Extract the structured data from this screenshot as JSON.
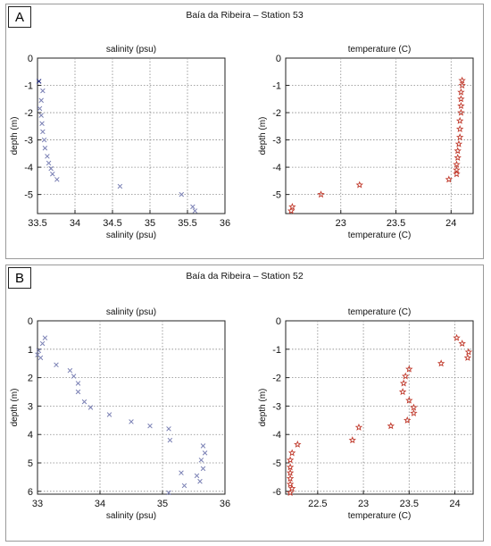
{
  "panels": [
    {
      "label": "A",
      "title": "Baía da Ribeira – Station 53",
      "charts": [
        {
          "type": "scatter",
          "title": "salinity (psu)",
          "xlabel": "salinity (psu)",
          "ylabel": "depth (m)",
          "xlim": [
            33.5,
            36
          ],
          "ylim": [
            -5.7,
            0
          ],
          "xticks": [
            33.5,
            34,
            34.5,
            35,
            35.5,
            36
          ],
          "yticks": [
            0,
            -1,
            -2,
            -3,
            -4,
            -5
          ],
          "grid": true,
          "marker": "x",
          "color": "#7a80b4",
          "first_point_color": "#1a237e",
          "points": [
            [
              33.52,
              -0.85
            ],
            [
              33.57,
              -1.2
            ],
            [
              33.55,
              -1.55
            ],
            [
              33.53,
              -1.85
            ],
            [
              33.55,
              -2.1
            ],
            [
              33.56,
              -2.4
            ],
            [
              33.57,
              -2.7
            ],
            [
              33.59,
              -3.0
            ],
            [
              33.6,
              -3.3
            ],
            [
              33.63,
              -3.6
            ],
            [
              33.65,
              -3.85
            ],
            [
              33.68,
              -4.05
            ],
            [
              33.7,
              -4.25
            ],
            [
              33.76,
              -4.45
            ],
            [
              34.6,
              -4.7
            ],
            [
              35.42,
              -5.0
            ],
            [
              35.57,
              -5.45
            ],
            [
              35.6,
              -5.6
            ]
          ]
        },
        {
          "type": "scatter",
          "title": "temperature (C)",
          "xlabel": "temperature (C)",
          "ylabel": "depth (m)",
          "xlim": [
            22.5,
            24.2
          ],
          "ylim": [
            -5.7,
            0
          ],
          "xticks": [
            23,
            23.5,
            24
          ],
          "yticks": [
            0,
            -1,
            -2,
            -3,
            -4,
            -5
          ],
          "grid": true,
          "marker": "star",
          "color": "#c0392b",
          "points": [
            [
              24.1,
              -0.82
            ],
            [
              24.1,
              -1.0
            ],
            [
              24.09,
              -1.25
            ],
            [
              24.09,
              -1.5
            ],
            [
              24.09,
              -1.75
            ],
            [
              24.09,
              -2.0
            ],
            [
              24.08,
              -2.3
            ],
            [
              24.08,
              -2.6
            ],
            [
              24.08,
              -2.9
            ],
            [
              24.07,
              -3.15
            ],
            [
              24.06,
              -3.4
            ],
            [
              24.06,
              -3.65
            ],
            [
              24.05,
              -3.9
            ],
            [
              24.05,
              -4.1
            ],
            [
              24.05,
              -4.25
            ],
            [
              23.98,
              -4.45
            ],
            [
              23.17,
              -4.65
            ],
            [
              22.82,
              -5.0
            ],
            [
              22.56,
              -5.45
            ],
            [
              22.55,
              -5.6
            ]
          ]
        }
      ]
    },
    {
      "label": "B",
      "title": "Baía da Ribeira – Station 52",
      "charts": [
        {
          "type": "scatter",
          "title": "salinity (psu)",
          "xlabel": "salinity (psu)",
          "ylabel": "depth (m)",
          "xlim": [
            33,
            36
          ],
          "ylim": [
            0,
            6.1
          ],
          "xticks": [
            33,
            34,
            35,
            36
          ],
          "yticks": [
            0,
            1,
            2,
            3,
            4,
            5,
            6
          ],
          "grid": true,
          "marker": "x",
          "color": "#7a80b4",
          "points": [
            [
              33.12,
              0.6
            ],
            [
              33.08,
              0.8
            ],
            [
              33.02,
              1.05
            ],
            [
              33.0,
              1.2
            ],
            [
              33.05,
              1.3
            ],
            [
              33.3,
              1.55
            ],
            [
              33.52,
              1.75
            ],
            [
              33.58,
              1.95
            ],
            [
              33.65,
              2.2
            ],
            [
              33.65,
              2.5
            ],
            [
              33.75,
              2.85
            ],
            [
              33.85,
              3.05
            ],
            [
              34.15,
              3.3
            ],
            [
              34.5,
              3.55
            ],
            [
              34.8,
              3.7
            ],
            [
              35.1,
              3.8
            ],
            [
              35.12,
              4.2
            ],
            [
              35.65,
              4.4
            ],
            [
              35.68,
              4.65
            ],
            [
              35.62,
              4.9
            ],
            [
              35.65,
              5.2
            ],
            [
              35.3,
              5.35
            ],
            [
              35.55,
              5.45
            ],
            [
              35.6,
              5.65
            ],
            [
              35.35,
              5.8
            ],
            [
              35.1,
              6.05
            ]
          ]
        },
        {
          "type": "scatter",
          "title": "temperature (C)",
          "xlabel": "temperature (C)",
          "ylabel": "depth (m)",
          "xlim": [
            22.15,
            24.2
          ],
          "ylim": [
            -6.1,
            0
          ],
          "xticks": [
            22.5,
            23,
            23.5,
            24
          ],
          "yticks": [
            0,
            -1,
            -2,
            -3,
            -4,
            -5,
            -6
          ],
          "grid": true,
          "marker": "star",
          "color": "#c0392b",
          "points": [
            [
              24.02,
              -0.6
            ],
            [
              24.08,
              -0.8
            ],
            [
              24.15,
              -1.1
            ],
            [
              24.14,
              -1.3
            ],
            [
              23.85,
              -1.5
            ],
            [
              23.5,
              -1.7
            ],
            [
              23.46,
              -1.95
            ],
            [
              23.44,
              -2.2
            ],
            [
              23.43,
              -2.5
            ],
            [
              23.5,
              -2.8
            ],
            [
              23.55,
              -3.05
            ],
            [
              23.55,
              -3.25
            ],
            [
              23.48,
              -3.5
            ],
            [
              23.3,
              -3.7
            ],
            [
              22.95,
              -3.75
            ],
            [
              22.88,
              -4.2
            ],
            [
              22.28,
              -4.35
            ],
            [
              22.22,
              -4.65
            ],
            [
              22.2,
              -4.9
            ],
            [
              22.2,
              -5.15
            ],
            [
              22.2,
              -5.35
            ],
            [
              22.2,
              -5.55
            ],
            [
              22.2,
              -5.75
            ],
            [
              22.22,
              -5.9
            ],
            [
              22.2,
              -6.05
            ]
          ]
        }
      ]
    }
  ]
}
